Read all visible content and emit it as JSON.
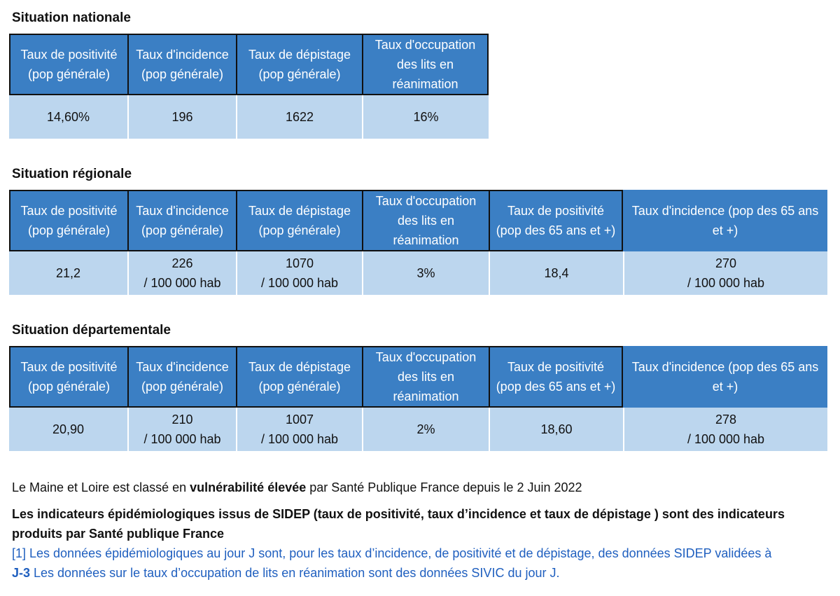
{
  "nationale": {
    "title": "Situation nationale",
    "headers": [
      "Taux de positivité\n(pop générale)",
      "Taux d'incidence\n(pop générale)",
      "Taux de dépistage\n(pop générale)",
      "Taux d'occupation\ndes lits en\nréanimation"
    ],
    "values": [
      "14,60%",
      "196",
      "1622",
      "16%"
    ]
  },
  "regionale": {
    "title": "Situation régionale",
    "headers": [
      "Taux de positivité\n(pop générale)",
      "Taux d'incidence\n(pop générale)",
      "Taux de dépistage\n(pop générale)",
      "Taux d'occupation\ndes lits en\nréanimation",
      "Taux de positivité\n(pop des 65 ans et +)",
      "Taux d'incidence (pop des 65 ans\net +)"
    ],
    "values": [
      "21,2",
      "226\n/ 100 000 hab",
      "1070\n/ 100 000 hab",
      "3%",
      "18,4",
      "270\n/ 100 000 hab"
    ]
  },
  "departementale": {
    "title": "Situation départementale",
    "headers": [
      "Taux de positivité\n(pop générale)",
      "Taux d'incidence\n(pop générale)",
      "Taux de dépistage\n(pop générale)",
      "Taux d'occupation\ndes lits en\nréanimation",
      "Taux de positivité\n(pop des 65 ans et +)",
      "Taux d'incidence (pop des 65 ans\net +)"
    ],
    "values": [
      "20,90",
      "210\n/ 100 000 hab",
      "1007\n/ 100 000 hab",
      "2%",
      "18,60",
      "278\n/ 100 000 hab"
    ]
  },
  "notes": {
    "vuln_prefix": "Le Maine et Loire est classé en ",
    "vuln_bold": "vulnérabilité élevée",
    "vuln_suffix": " par Santé Publique France depuis le 2 Juin 2022",
    "sidep_line1": "Les indicateurs épidémiologiques issus de SIDEP (taux de positivité, taux d’incidence et taux de dépistage ) sont des indicateurs",
    "sidep_line2": "produits par Santé publique France",
    "fn_line1": "[1] Les données épidémiologiques au jour J sont, pour les taux d’incidence, de positivité et de dépistage, des données SIDEP validées à",
    "fn_bold": "J-3",
    "fn_line2": " Les données sur le taux d’occupation de lits en réanimation sont des données SIVIC du jour J."
  }
}
